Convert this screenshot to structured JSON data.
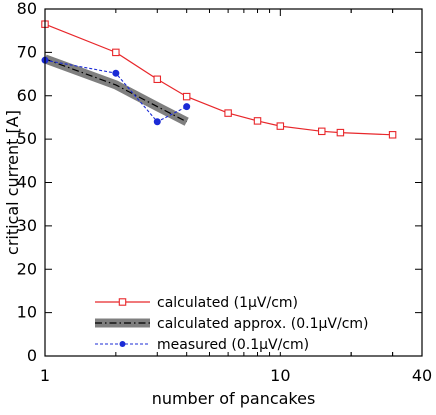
{
  "chart_data": {
    "type": "line",
    "xscale": "log",
    "xlim": [
      1,
      40
    ],
    "ylim": [
      0,
      80
    ],
    "xticks": [
      1,
      10,
      40
    ],
    "xtick_labels": [
      "1",
      "10",
      "40"
    ],
    "yticks": [
      0,
      10,
      20,
      30,
      40,
      50,
      60,
      70,
      80
    ],
    "ytick_labels": [
      "0",
      "10",
      "20",
      "30",
      "40",
      "50",
      "60",
      "70",
      "80"
    ],
    "xlabel": "number of pancakes",
    "ylabel": "critical current [A]",
    "grid": false,
    "legend_position": "bottom-left",
    "series": [
      {
        "name": "calculated (1μV/cm)",
        "color": "#e8272b",
        "marker": "square",
        "x": [
          1,
          2,
          3,
          4,
          6,
          8,
          10,
          15,
          18,
          30
        ],
        "y": [
          76.5,
          70,
          63.8,
          59.8,
          56,
          54.2,
          53,
          51.8,
          51.5,
          51
        ]
      },
      {
        "name": "calculated approx. (0.1μV/cm)",
        "color": "#000000",
        "band_color": "#7f7f7f",
        "marker": "none",
        "x": [
          1,
          2,
          3,
          4
        ],
        "y": [
          68.5,
          62.5,
          57.5,
          54
        ]
      },
      {
        "name": "measured (0.1μV/cm)",
        "color": "#1b2bd6",
        "marker": "circle",
        "x": [
          1,
          2,
          3,
          4
        ],
        "y": [
          68.2,
          65.2,
          54,
          57.5
        ]
      }
    ]
  }
}
